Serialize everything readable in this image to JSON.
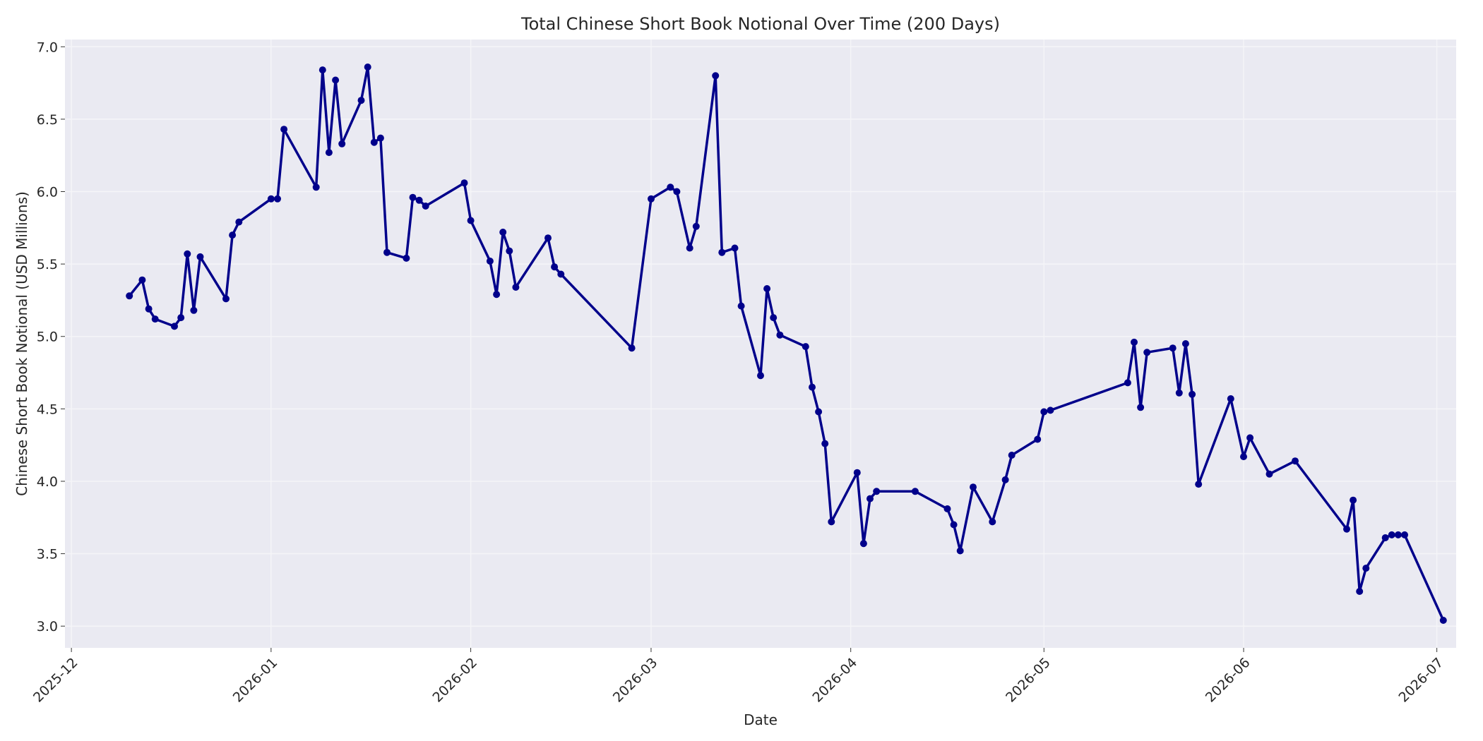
{
  "chart_data": {
    "type": "line",
    "title": "Total Chinese Short Book Notional Over Time (200 Days)",
    "xlabel": "Date",
    "ylabel": "Chinese Short Book Notional (USD Millions)",
    "xlim": [
      "2025-11-30",
      "2026-07-04"
    ],
    "ylim": [
      2.85,
      7.05
    ],
    "grid": true,
    "x_ticks": [
      "2025-12-01",
      "2026-01-01",
      "2026-02-01",
      "2026-03-01",
      "2026-04-01",
      "2026-05-01",
      "2026-06-01",
      "2026-07-01"
    ],
    "x_tick_labels": [
      "2025-12",
      "2026-01",
      "2026-02",
      "2026-03",
      "2026-04",
      "2026-05",
      "2026-06",
      "2026-07"
    ],
    "y_ticks": [
      3.0,
      3.5,
      4.0,
      4.5,
      5.0,
      5.5,
      6.0,
      6.5,
      7.0
    ],
    "y_tick_labels": [
      "3.0",
      "3.5",
      "4.0",
      "4.5",
      "5.0",
      "5.5",
      "6.0",
      "6.5",
      "7.0"
    ],
    "colors": {
      "line": "#00008b",
      "plot_bg": "#eaeaf2",
      "grid": "#f5f5f8"
    },
    "series": [
      {
        "x": [
          "2025-12-10",
          "2025-12-12",
          "2025-12-13",
          "2025-12-14",
          "2025-12-17",
          "2025-12-18",
          "2025-12-19",
          "2025-12-20",
          "2025-12-21",
          "2025-12-25",
          "2025-12-26",
          "2025-12-27",
          "2026-01-01",
          "2026-01-02",
          "2026-01-03",
          "2026-01-08",
          "2026-01-09",
          "2026-01-10",
          "2026-01-11",
          "2026-01-12",
          "2026-01-15",
          "2026-01-16",
          "2026-01-17",
          "2026-01-18",
          "2026-01-19",
          "2026-01-22",
          "2026-01-23",
          "2026-01-24",
          "2026-01-25",
          "2026-01-31",
          "2026-02-01",
          "2026-02-04",
          "2026-02-05",
          "2026-02-06",
          "2026-02-07",
          "2026-02-08",
          "2026-02-13",
          "2026-02-14",
          "2026-02-15",
          "2026-02-26",
          "2026-03-01",
          "2026-03-04",
          "2026-03-05",
          "2026-03-07",
          "2026-03-08",
          "2026-03-11",
          "2026-03-12",
          "2026-03-14",
          "2026-03-15",
          "2026-03-18",
          "2026-03-19",
          "2026-03-20",
          "2026-03-21",
          "2026-03-25",
          "2026-03-26",
          "2026-03-27",
          "2026-03-28",
          "2026-03-29",
          "2026-04-02",
          "2026-04-03",
          "2026-04-04",
          "2026-04-05",
          "2026-04-11",
          "2026-04-16",
          "2026-04-17",
          "2026-04-18",
          "2026-04-20",
          "2026-04-23",
          "2026-04-25",
          "2026-04-26",
          "2026-04-30",
          "2026-05-01",
          "2026-05-02",
          "2026-05-14",
          "2026-05-15",
          "2026-05-16",
          "2026-05-17",
          "2026-05-21",
          "2026-05-22",
          "2026-05-23",
          "2026-05-24",
          "2026-05-25",
          "2026-05-30",
          "2026-06-01",
          "2026-06-02",
          "2026-06-05",
          "2026-06-09",
          "2026-06-17",
          "2026-06-18",
          "2026-06-19",
          "2026-06-20",
          "2026-06-23",
          "2026-06-24",
          "2026-06-25",
          "2026-06-26",
          "2026-07-02"
        ],
        "y": [
          5.28,
          5.39,
          5.19,
          5.12,
          5.07,
          5.13,
          5.57,
          5.18,
          5.55,
          5.26,
          5.7,
          5.79,
          5.95,
          5.95,
          6.43,
          6.03,
          6.84,
          6.27,
          6.77,
          6.33,
          6.63,
          6.86,
          6.34,
          6.37,
          5.58,
          5.54,
          5.96,
          5.94,
          5.9,
          6.06,
          5.8,
          5.52,
          5.29,
          5.72,
          5.59,
          5.34,
          5.68,
          5.48,
          5.43,
          4.92,
          5.95,
          6.03,
          6.0,
          5.61,
          5.76,
          6.8,
          5.58,
          5.61,
          5.21,
          4.73,
          5.33,
          5.13,
          5.01,
          4.93,
          4.65,
          4.48,
          4.26,
          3.72,
          4.06,
          3.57,
          3.88,
          3.93,
          3.93,
          3.81,
          3.7,
          3.52,
          3.96,
          3.72,
          4.01,
          4.18,
          4.29,
          4.48,
          4.49,
          4.68,
          4.96,
          4.51,
          4.89,
          4.92,
          4.61,
          4.95,
          4.6,
          3.98,
          4.57,
          4.17,
          4.3,
          4.05,
          4.14,
          3.67,
          3.87,
          3.24,
          3.4,
          3.61,
          3.63,
          3.63,
          3.63,
          3.04
        ]
      }
    ]
  }
}
